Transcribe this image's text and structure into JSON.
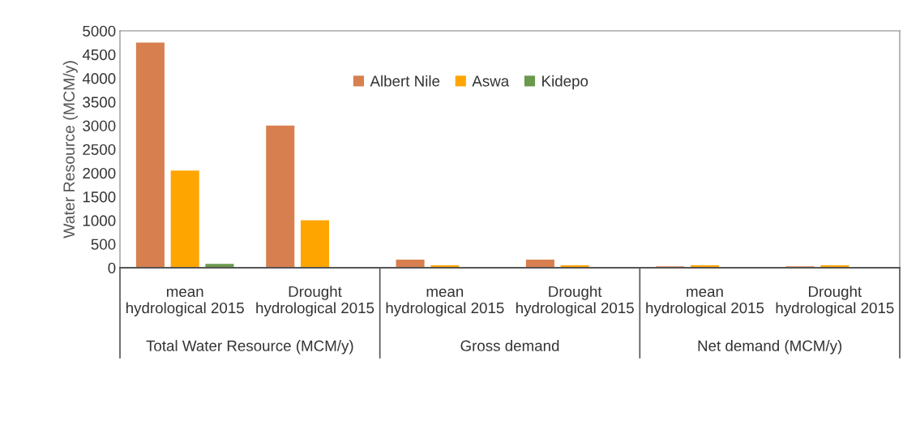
{
  "chart_data": {
    "type": "bar",
    "ylabel": "Water Resource (MCM/y)",
    "categories": [
      "mean\nhydrological 2015",
      "Drought\nhydrological 2015",
      "mean\nhydrological 2015",
      "Drought\nhydrological 2015",
      "mean\nhydrological 2015",
      "Drought\nhydrological 2015"
    ],
    "series": [
      {
        "name": "Albert Nile",
        "color": "#d77f4f",
        "values": [
          4750,
          3000,
          170,
          170,
          30,
          30
        ]
      },
      {
        "name": "Aswa",
        "color": "#ffa500",
        "values": [
          2050,
          1000,
          50,
          50,
          50,
          50
        ]
      },
      {
        "name": "Kidepo",
        "color": "#6a994e",
        "values": [
          80,
          5,
          2,
          2,
          1,
          1
        ]
      }
    ],
    "annotations": [
      "Total Water Resource (MCM/y)",
      "Gross demand",
      "Net demand (MCM/y)"
    ],
    "ylim": [
      0,
      5000
    ],
    "yticks": [
      0,
      500,
      1000,
      1500,
      2000,
      2500,
      3000,
      3500,
      4000,
      4500,
      5000
    ],
    "grid": false,
    "legend": "top"
  }
}
